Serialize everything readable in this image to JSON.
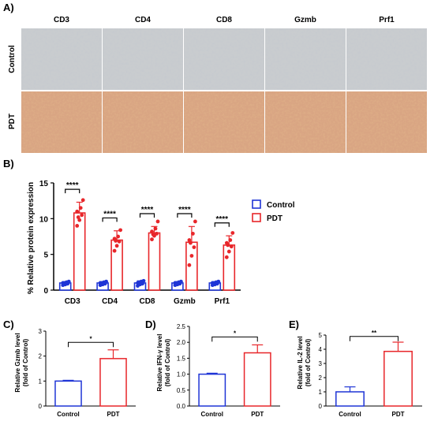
{
  "panels": {
    "a": "A)",
    "b": "B)",
    "c": "C)",
    "d": "D)",
    "e": "E)"
  },
  "micrographs": {
    "columns": [
      "CD3",
      "CD4",
      "CD8",
      "Gzmb",
      "Prf1"
    ],
    "rows": [
      "Control",
      "PDT"
    ]
  },
  "colors": {
    "control": "#1f35d6",
    "pdt": "#e8262a",
    "control_tissue": "#c9cccf",
    "pdt_tissue": "#d9a583"
  },
  "chart_data": [
    {
      "type": "bar",
      "panel": "B)",
      "categories": [
        "CD3",
        "CD4",
        "CD8",
        "Gzmb",
        "Prf1"
      ],
      "ylabel": "% Relative protein expression",
      "ylim": [
        0,
        15
      ],
      "yticks": [
        "0",
        "5",
        "10",
        "15"
      ],
      "series": [
        {
          "name": "Control",
          "values": [
            1.0,
            1.0,
            1.0,
            1.0,
            1.0
          ],
          "errors": [
            0.2,
            0.2,
            0.3,
            0.2,
            0.2
          ]
        },
        {
          "name": "PDT",
          "values": [
            10.8,
            7.0,
            8.0,
            6.7,
            6.3
          ],
          "errors": [
            1.5,
            1.3,
            0.9,
            2.2,
            1.3
          ]
        }
      ],
      "points": {
        "PDT": [
          [
            9.0,
            9.8,
            10.5,
            11.0,
            11.5,
            12.6,
            10.2
          ],
          [
            5.5,
            6.2,
            6.8,
            7.2,
            7.5,
            8.4,
            6.9
          ],
          [
            7.1,
            7.6,
            7.9,
            8.2,
            8.6,
            9.6,
            7.8
          ],
          [
            3.5,
            4.8,
            6.0,
            7.0,
            7.9,
            9.6,
            6.6
          ],
          [
            4.6,
            5.4,
            6.1,
            6.6,
            7.0,
            8.0,
            6.3
          ]
        ],
        "Control": [
          [
            0.7,
            0.8,
            0.9,
            1.0,
            1.1,
            1.2,
            1.0
          ],
          [
            0.7,
            0.8,
            0.9,
            1.0,
            1.1,
            1.2,
            1.0
          ],
          [
            0.6,
            0.8,
            0.9,
            1.0,
            1.2,
            1.3,
            1.0
          ],
          [
            0.7,
            0.8,
            0.9,
            1.0,
            1.1,
            1.2,
            1.0
          ],
          [
            0.7,
            0.8,
            0.9,
            1.0,
            1.1,
            1.2,
            1.0
          ]
        ]
      },
      "significance": [
        "****",
        "****",
        "****",
        "****",
        "****"
      ],
      "legend": [
        "Control",
        "PDT"
      ],
      "legend_position": "right"
    },
    {
      "type": "bar",
      "panel": "C)",
      "categories": [
        "Control",
        "PDT"
      ],
      "values": [
        1.0,
        1.9
      ],
      "errors": [
        0.03,
        0.35
      ],
      "ylabel_line1": "Relative Gzmb level",
      "ylabel_line2": "(fold of Control)",
      "ylim": [
        0,
        3
      ],
      "yticks": [
        "0",
        "1",
        "2",
        "3"
      ],
      "significance": "*"
    },
    {
      "type": "bar",
      "panel": "D)",
      "categories": [
        "Control",
        "PDT"
      ],
      "values": [
        1.0,
        1.67
      ],
      "errors": [
        0.03,
        0.25
      ],
      "ylabel_line1": "Relative IFN-γ level",
      "ylabel_line2": "(fold of Control)",
      "ylim": [
        0,
        2.5
      ],
      "yticks": [
        "0.0",
        "0.5",
        "1.0",
        "1.5",
        "2.0",
        "2.5"
      ],
      "significance": "*"
    },
    {
      "type": "bar",
      "panel": "E)",
      "categories": [
        "Control",
        "PDT"
      ],
      "values": [
        1.0,
        3.85
      ],
      "errors": [
        0.35,
        0.65
      ],
      "ylabel_line1": "Relative IL-2 level",
      "ylabel_line2": "(fold of Control)",
      "ylim": [
        0,
        5
      ],
      "yticks": [
        "0",
        "1",
        "2",
        "3",
        "4",
        "5"
      ],
      "significance": "**"
    }
  ]
}
